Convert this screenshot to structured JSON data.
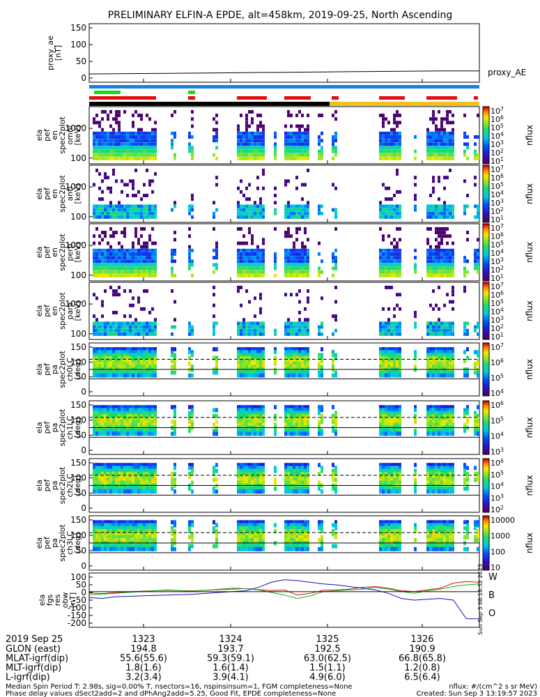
{
  "title": "PRELIMINARY ELFIN-A EPDE, alt=458km, 2019-09-25, North Ascending",
  "chart_data": {
    "type": "heatmap",
    "time_ticks": [
      "1323",
      "1324",
      "1325",
      "1326"
    ],
    "panels": [
      {
        "id": "proxy_ae",
        "type": "line",
        "ylabel": [
          "proxy_ae",
          "[nT]"
        ],
        "yticks": [
          "150",
          "100",
          "50",
          "0"
        ],
        "ylim": [
          -10,
          160
        ],
        "legend": "proxy_AE",
        "series": [
          {
            "name": "proxy_AE",
            "values": [
              14,
              15,
              16,
              17,
              18,
              19,
              20,
              21,
              22,
              23,
              23
            ]
          }
        ]
      },
      {
        "id": "en_omni",
        "type": "heatmap",
        "ylabel": [
          "ela",
          "pef",
          "en",
          "spec2plot",
          "omni",
          "[keV]"
        ],
        "yticks": [
          "1000",
          "100"
        ],
        "cbar_ticks": [
          "10^7",
          "10^6",
          "10^5",
          "10^4",
          "10^3",
          "10^2",
          "10^1"
        ],
        "cbar_label": "nflux"
      },
      {
        "id": "en_anti",
        "type": "heatmap",
        "ylabel": [
          "ela",
          "pef",
          "en",
          "spec2plot",
          "anti",
          "[keV]"
        ],
        "yticks": [
          "1000",
          "100"
        ],
        "cbar_ticks": [
          "10^7",
          "10^6",
          "10^5",
          "10^4",
          "10^3",
          "10^2",
          "10^1"
        ],
        "cbar_label": "nflux"
      },
      {
        "id": "en_perp",
        "type": "heatmap",
        "ylabel": [
          "ela",
          "pef",
          "en",
          "spec2plot",
          "perp",
          "[keV]"
        ],
        "yticks": [
          "1000",
          "100"
        ],
        "cbar_ticks": [
          "10^7",
          "10^6",
          "10^5",
          "10^4",
          "10^3",
          "10^2",
          "10^1"
        ],
        "cbar_label": "nflux"
      },
      {
        "id": "en_para",
        "type": "heatmap",
        "ylabel": [
          "ela",
          "pef",
          "en",
          "spec2plot",
          "para",
          "[keV]"
        ],
        "yticks": [
          "1000",
          "100"
        ],
        "cbar_ticks": [
          "10^7",
          "10^6",
          "10^5",
          "10^4",
          "10^3",
          "10^2",
          "10^1"
        ],
        "cbar_label": "nflux"
      },
      {
        "id": "pa_ch0",
        "type": "heatmap",
        "ylabel": [
          "ela",
          "pef",
          "pa",
          "spec2plot",
          "ch0LC",
          "[deg]"
        ],
        "yticks": [
          "150",
          "100",
          "50",
          "0"
        ],
        "cbar_ticks": [
          "10^7",
          "10^6",
          "10^5",
          "10^4"
        ],
        "cbar_label": "nflux"
      },
      {
        "id": "pa_ch1",
        "type": "heatmap",
        "ylabel": [
          "ela",
          "pef",
          "pa",
          "spec2plot",
          "ch1LC",
          "[deg]"
        ],
        "yticks": [
          "150",
          "100",
          "50",
          "0"
        ],
        "cbar_ticks": [
          "10^6",
          "10^5",
          "10^4",
          "10^3"
        ],
        "cbar_label": "nflux"
      },
      {
        "id": "pa_ch2",
        "type": "heatmap",
        "ylabel": [
          "ela",
          "pef",
          "pa",
          "spec2plot",
          "ch2LC",
          "[deg]"
        ],
        "yticks": [
          "150",
          "100",
          "50",
          "0"
        ],
        "cbar_ticks": [
          "10^6",
          "10^5",
          "10^4",
          "10^3",
          "10^2"
        ],
        "cbar_label": "nflux"
      },
      {
        "id": "pa_ch3",
        "type": "heatmap",
        "ylabel": [
          "ela",
          "pef",
          "pa",
          "spec2plot",
          "ch3LC",
          "[deg]"
        ],
        "yticks": [
          "150",
          "100",
          "50",
          "0"
        ],
        "cbar_ticks": [
          "10000",
          "1000",
          "100",
          "10"
        ],
        "cbar_label": "nflux"
      },
      {
        "id": "fgs_res_obw",
        "type": "line",
        "ylabel": [
          "ela",
          "fgs",
          "res",
          "obw",
          "[nT]"
        ],
        "yticks": [
          "100",
          "50",
          "0",
          "-50",
          "-100",
          "-150",
          "-200"
        ],
        "ylim": [
          -210,
          110
        ],
        "legend": [
          "W",
          "B",
          "O"
        ],
        "series": [
          {
            "name": "W",
            "color": "#d01010",
            "values": [
              -8,
              -12,
              -5,
              -2,
              2,
              5,
              10,
              6,
              4,
              8,
              12,
              15,
              18,
              12,
              6,
              10,
              -20,
              -10,
              8,
              10,
              15,
              25,
              30,
              20,
              5,
              0,
              10,
              20,
              50,
              60,
              55
            ]
          },
          {
            "name": "B",
            "color": "#10b010",
            "values": [
              -20,
              -15,
              -10,
              -5,
              0,
              5,
              8,
              5,
              3,
              8,
              15,
              20,
              18,
              10,
              -5,
              -20,
              -40,
              -25,
              0,
              5,
              10,
              15,
              25,
              15,
              0,
              -10,
              5,
              15,
              30,
              40,
              45
            ]
          },
          {
            "name": "O",
            "color": "#1010c0",
            "values": [
              -35,
              -40,
              -30,
              -28,
              -25,
              -22,
              -20,
              -18,
              -15,
              -10,
              -5,
              0,
              5,
              25,
              55,
              70,
              65,
              55,
              45,
              40,
              30,
              20,
              10,
              -10,
              -40,
              -50,
              -45,
              -40,
              -50,
              -160,
              -160
            ]
          }
        ]
      }
    ]
  },
  "spin_note": "Sun Sep  3 08:18:52 2023",
  "footer_table": {
    "date": "2019 Sep 25",
    "rows": [
      {
        "label": "GLON (east)",
        "values": [
          "194.8",
          "193.7",
          "192.5",
          "190.9"
        ]
      },
      {
        "label": "MLAT-igrf(dip)",
        "values": [
          "55.6(55.6)",
          "59.3(59.1)",
          "63.0(62.5)",
          "66.8(65.8)"
        ]
      },
      {
        "label": "MLT-igrf(dip)",
        "values": [
          "1.8(1.6)",
          "1.6(1.4)",
          "1.5(1.1)",
          "1.2(0.8)"
        ]
      },
      {
        "label": "L-igrf(dip)",
        "values": [
          "3.2(3.4)",
          "3.9(4.1)",
          "4.9(6.0)",
          "6.5(6.4)"
        ]
      }
    ]
  },
  "footer_notes": {
    "line1": "Median Spin Period T: 2.98s, sig=0.00% T, nsectors=16, nspinsinsum=1, FGM completeness=None",
    "line2": "Phase delay values dSect2add=2 and dPhAng2add=5.25, Good Fit, EPDE completeness=None",
    "units": "nflux: #/(cm^2 s sr MeV)",
    "created": "Created: Sun Sep  3 13:19:57 2023"
  },
  "colors": {
    "blue_bar": "#1a7fe0",
    "red_bar": "#e01010",
    "green_bar": "#10e010",
    "black_bar": "#000000",
    "yellow_bar": "#f0c020"
  }
}
